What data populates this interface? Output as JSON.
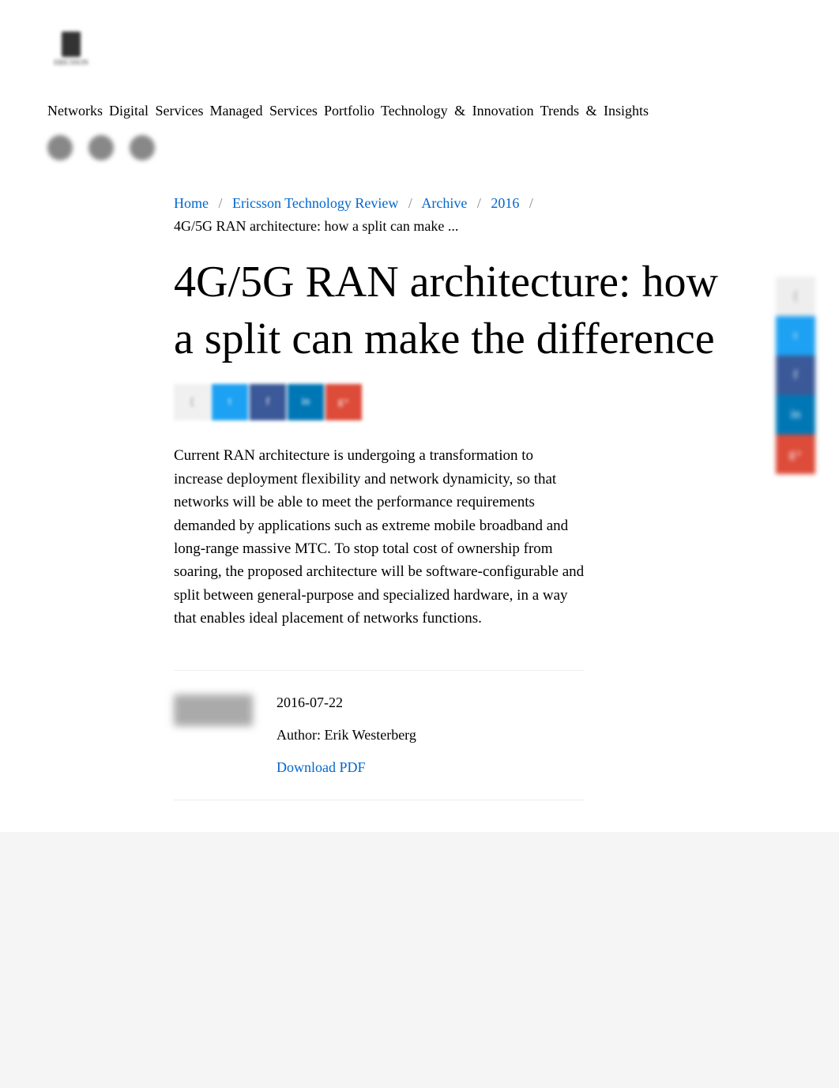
{
  "logo": {
    "text": "ERICSSON"
  },
  "nav": {
    "items": [
      "Networks",
      "Digital Services",
      "Managed Services",
      "Portfolio",
      "Technology & Innovation",
      "Trends & Insights"
    ]
  },
  "breadcrumb": {
    "home": "Home",
    "review": "Ericsson Technology Review",
    "archive": "Archive",
    "year": "2016",
    "current": "4G/5G RAN architecture: how a split can make ..."
  },
  "article": {
    "title": "4G/5G RAN architecture: how a split can make the difference",
    "body": "Current RAN architecture is undergoing a transformation to increase deployment flexibility and network dynamicity, so that networks will be able to meet the performance requirements demanded by applications such as extreme mobile broadband and long-range massive MTC. To stop total cost of ownership from soaring, the proposed architecture will be software-configurable and split between general-purpose and specialized hardware, in a way that enables ideal placement of networks functions."
  },
  "meta": {
    "date": "2016-07-22",
    "author_label": "Author: ",
    "author_name": "Erik Westerberg",
    "download": "Download PDF"
  },
  "share": {
    "colors": {
      "label": "#eeeeee",
      "twitter": "#1da1f2",
      "facebook": "#3b5998",
      "linkedin": "#0077b5",
      "google": "#dd4b39"
    }
  },
  "side_share": {
    "colors": {
      "share": "#eeeeee",
      "twitter": "#1da1f2",
      "facebook": "#3b5998",
      "linkedin": "#0077b5",
      "google": "#dd4b39"
    }
  },
  "colors": {
    "link": "#0066cc",
    "text": "#000000",
    "mute": "#888888"
  }
}
